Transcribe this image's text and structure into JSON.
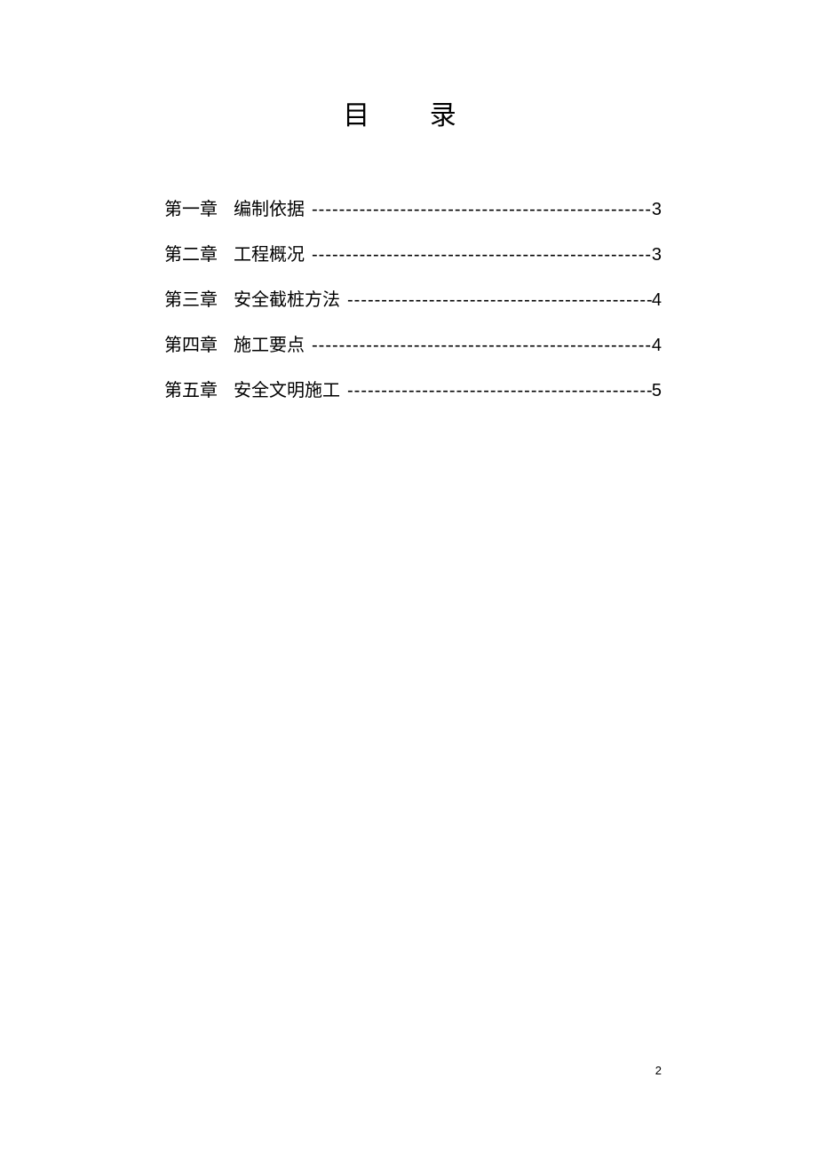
{
  "title": "目  录",
  "toc": [
    {
      "chapter": "第一章",
      "name": "编制依据",
      "page": "3"
    },
    {
      "chapter": "第二章",
      "name": "工程概况",
      "page": "3"
    },
    {
      "chapter": "第三章",
      "name": "安全截桩方法",
      "page": "4"
    },
    {
      "chapter": "第四章",
      "name": "施工要点",
      "page": "4"
    },
    {
      "chapter": "第五章",
      "name": "安全文明施工",
      "page": "5"
    }
  ],
  "leader_char": "-",
  "page_number": "2",
  "colors": {
    "background": "#ffffff",
    "text": "#000000"
  },
  "typography": {
    "title_fontsize": 30,
    "item_fontsize": 20,
    "footer_fontsize": 13
  }
}
